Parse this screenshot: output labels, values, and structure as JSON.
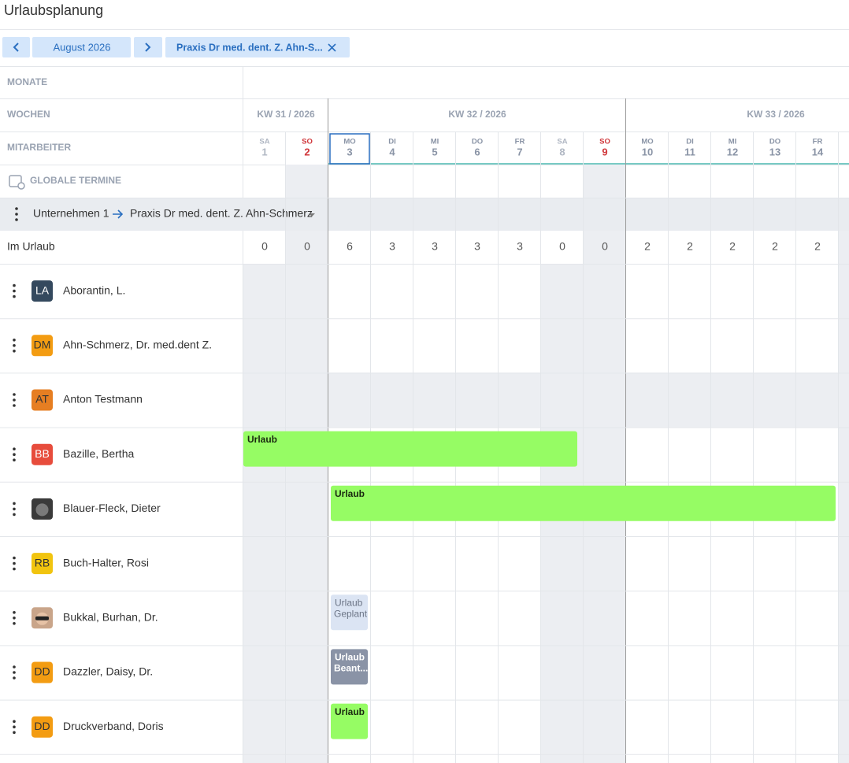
{
  "header": {
    "title": "Urlaubsplanung"
  },
  "toolbar": {
    "month": "August 2026",
    "filter": "Praxis Dr med. dent. Z. Ahn-S..."
  },
  "grid": {
    "row_labels": {
      "months": "MONATE",
      "weeks": "WOCHEN",
      "staff": "MITARBEITER",
      "global": "GLOBALE TERMINE"
    },
    "weeks": [
      "KW 31 / 2026",
      "KW 32 / 2026",
      "KW 33 / 2026"
    ],
    "days": [
      {
        "weekday": "SA",
        "day": 1
      },
      {
        "weekday": "SO",
        "day": 2
      },
      {
        "weekday": "MO",
        "day": 3
      },
      {
        "weekday": "DI",
        "day": 4
      },
      {
        "weekday": "MI",
        "day": 5
      },
      {
        "weekday": "DO",
        "day": 6
      },
      {
        "weekday": "FR",
        "day": 7
      },
      {
        "weekday": "SA",
        "day": 8
      },
      {
        "weekday": "SO",
        "day": 9
      },
      {
        "weekday": "MO",
        "day": 10
      },
      {
        "weekday": "DI",
        "day": 11
      },
      {
        "weekday": "MI",
        "day": 12
      },
      {
        "weekday": "DO",
        "day": 13
      },
      {
        "weekday": "FR",
        "day": 14
      }
    ]
  },
  "group": {
    "company": "Unternehmen 1",
    "practice": "Praxis Dr med. dent. Z. Ahn-Schmerz"
  },
  "vacation_row": {
    "label": "Im Urlaub",
    "counts": [
      0,
      0,
      6,
      3,
      3,
      3,
      3,
      0,
      0,
      2,
      2,
      2,
      2,
      2
    ]
  },
  "employees": [
    {
      "initials": "LA",
      "name": "Aborantin, L."
    },
    {
      "initials": "DM",
      "name": "Ahn-Schmerz, Dr. med.dent Z."
    },
    {
      "initials": "AT",
      "name": "Anton Testmann"
    },
    {
      "initials": "BB",
      "name": "Bazille, Bertha",
      "event": {
        "label": "Urlaub"
      }
    },
    {
      "name": "Blauer-Fleck, Dieter",
      "event": {
        "label": "Urlaub"
      }
    },
    {
      "initials": "RB",
      "name": "Buch-Halter, Rosi"
    },
    {
      "name": "Bukkal, Burhan, Dr.",
      "event": {
        "label": "Urlaub",
        "status": "Geplant"
      }
    },
    {
      "initials": "DD",
      "name": "Dazzler, Daisy, Dr.",
      "event": {
        "label": "Urlaub",
        "status": "Beant..."
      }
    },
    {
      "initials": "DD",
      "name": "Druckverband, Doris",
      "event": {
        "label": "Urlaub"
      }
    }
  ]
}
